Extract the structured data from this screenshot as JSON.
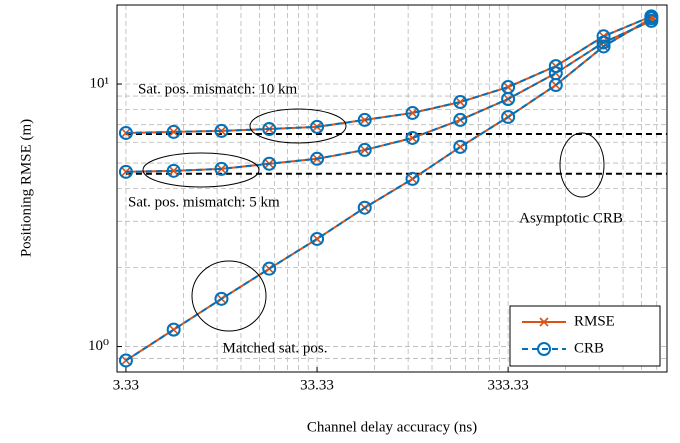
{
  "chart_data": {
    "type": "line",
    "x_label": "Channel delay accuracy (ns)",
    "y_label": "Positioning RMSE (m)",
    "xlog": true,
    "ylog": true,
    "grid": true,
    "legend_position": "lower right",
    "xlim": [
      2.99,
      2262
    ],
    "ylim": [
      0.8,
      20
    ],
    "xticks": [
      3.33,
      33.33,
      333.33
    ],
    "yticks": [
      {
        "value": 1,
        "label": "10⁰"
      },
      {
        "value": 10,
        "label": "10¹"
      }
    ],
    "x": [
      3.33,
      5.92,
      10.53,
      18.73,
      33.33,
      59.2,
      105.3,
      187.3,
      333.33,
      592.2,
      1053,
      1873
    ],
    "series": [
      {
        "name": "RMSE",
        "color": "#d95319",
        "marker": "x",
        "dashed": false,
        "curves": [
          [
            6.51,
            6.57,
            6.63,
            6.74,
            6.87,
            7.3,
            7.76,
            8.54,
            9.74,
            11.7,
            15.2,
            18.1
          ],
          [
            4.63,
            4.67,
            4.75,
            4.97,
            5.19,
            5.61,
            6.23,
            7.3,
            8.77,
            11.0,
            14.4,
            17.4
          ],
          [
            0.885,
            1.16,
            1.52,
            1.98,
            2.57,
            3.38,
            4.35,
            5.76,
            7.49,
            9.91,
            13.9,
            17.8
          ]
        ]
      },
      {
        "name": "CRB",
        "color": "#0072bd",
        "marker": "o",
        "dashed": true,
        "curves": [
          [
            6.51,
            6.57,
            6.63,
            6.74,
            6.87,
            7.3,
            7.76,
            8.54,
            9.74,
            11.7,
            15.2,
            18.1
          ],
          [
            4.63,
            4.67,
            4.75,
            4.97,
            5.19,
            5.61,
            6.23,
            7.3,
            8.77,
            11.0,
            14.4,
            17.4
          ],
          [
            0.885,
            1.16,
            1.52,
            1.98,
            2.57,
            3.38,
            4.35,
            5.76,
            7.49,
            9.91,
            13.9,
            17.8
          ]
        ]
      }
    ],
    "hlines": [
      6.45,
      4.55
    ],
    "annotations": [
      "Sat. pos. mismatch: 10 km",
      "Sat. pos. mismatch: 5 km",
      "Asymptotic CRB",
      "Matched sat. pos."
    ]
  }
}
